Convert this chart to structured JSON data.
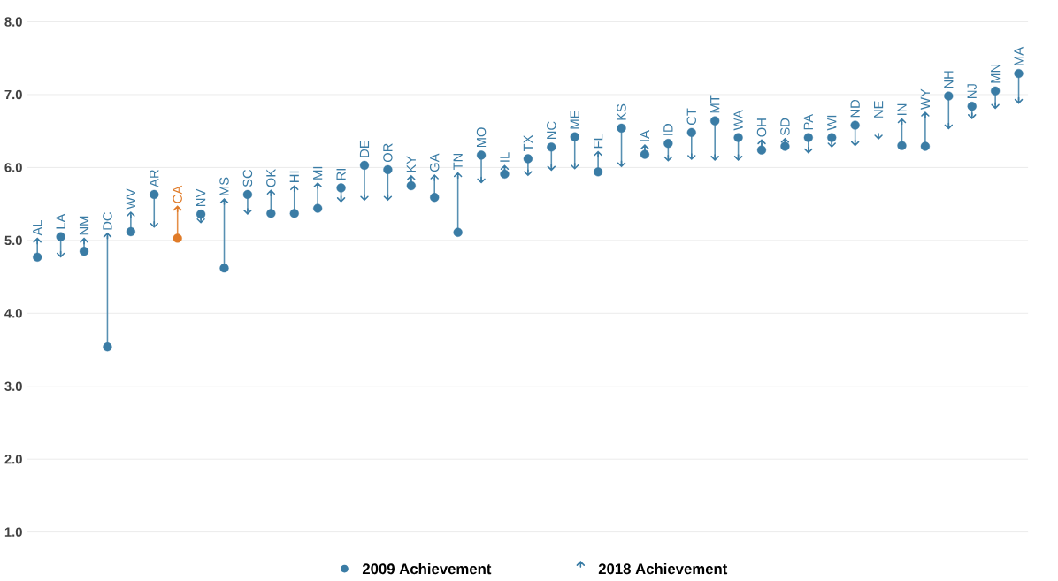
{
  "chart_data": {
    "type": "scatter",
    "categories": [
      "AL",
      "LA",
      "NM",
      "DC",
      "WV",
      "AR",
      "CA",
      "NV",
      "MS",
      "SC",
      "OK",
      "HI",
      "MI",
      "RI",
      "DE",
      "OR",
      "KY",
      "GA",
      "TN",
      "MO",
      "IL",
      "TX",
      "NC",
      "ME",
      "FL",
      "KS",
      "IA",
      "ID",
      "CT",
      "MT",
      "WA",
      "OH",
      "SD",
      "PA",
      "WI",
      "ND",
      "NE",
      "IN",
      "WY",
      "NH",
      "NJ",
      "MN",
      "MA"
    ],
    "series": [
      {
        "name": "2009 Achievement",
        "type": "scatter",
        "marker": "circle",
        "color": "#3a7ca5",
        "colors": [
          "#3a7ca5",
          "#3a7ca5",
          "#3a7ca5",
          "#3a7ca5",
          "#3a7ca5",
          "#3a7ca5",
          "#e07b28",
          "#3a7ca5",
          "#3a7ca5",
          "#3a7ca5",
          "#3a7ca5",
          "#3a7ca5",
          "#3a7ca5",
          "#3a7ca5",
          "#3a7ca5",
          "#3a7ca5",
          "#3a7ca5",
          "#3a7ca5",
          "#3a7ca5",
          "#3a7ca5",
          "#3a7ca5",
          "#3a7ca5",
          "#3a7ca5",
          "#3a7ca5",
          "#3a7ca5",
          "#3a7ca5",
          "#3a7ca5",
          "#3a7ca5",
          "#3a7ca5",
          "#3a7ca5",
          "#3a7ca5",
          "#3a7ca5",
          "#3a7ca5",
          "#3a7ca5",
          "#3a7ca5",
          "#3a7ca5",
          "#3a7ca5",
          "#3a7ca5",
          "#3a7ca5",
          "#3a7ca5",
          "#3a7ca5",
          "#3a7ca5",
          "#3a7ca5"
        ],
        "values": [
          4.77,
          5.05,
          4.85,
          3.54,
          5.12,
          5.63,
          5.03,
          5.36,
          4.62,
          5.63,
          5.37,
          5.37,
          5.44,
          5.72,
          6.03,
          5.97,
          5.75,
          5.59,
          5.11,
          6.17,
          5.91,
          6.12,
          6.28,
          6.42,
          5.94,
          6.54,
          6.18,
          6.33,
          6.48,
          6.64,
          6.41,
          6.24,
          6.29,
          6.41,
          6.41,
          6.58,
          null,
          6.3,
          6.29,
          6.98,
          6.84,
          7.05,
          7.29
        ]
      },
      {
        "name": "2018 Achievement",
        "type": "scatter",
        "color": "#3a7ca5",
        "colors": [
          "#3a7ca5",
          "#3a7ca5",
          "#3a7ca5",
          "#3a7ca5",
          "#3a7ca5",
          "#3a7ca5",
          "#e07b28",
          "#3a7ca5",
          "#3a7ca5",
          "#3a7ca5",
          "#3a7ca5",
          "#3a7ca5",
          "#3a7ca5",
          "#3a7ca5",
          "#3a7ca5",
          "#3a7ca5",
          "#3a7ca5",
          "#3a7ca5",
          "#3a7ca5",
          "#3a7ca5",
          "#3a7ca5",
          "#3a7ca5",
          "#3a7ca5",
          "#3a7ca5",
          "#3a7ca5",
          "#3a7ca5",
          "#3a7ca5",
          "#3a7ca5",
          "#3a7ca5",
          "#3a7ca5",
          "#3a7ca5",
          "#3a7ca5",
          "#3a7ca5",
          "#3a7ca5",
          "#3a7ca5",
          "#3a7ca5",
          "#3a7ca5",
          "#3a7ca5",
          "#3a7ca5",
          "#3a7ca5",
          "#3a7ca5",
          "#3a7ca5",
          "#3a7ca5"
        ],
        "values": [
          4.99,
          4.81,
          4.99,
          5.06,
          5.35,
          5.22,
          5.43,
          5.28,
          5.53,
          5.4,
          5.65,
          5.71,
          5.75,
          5.57,
          5.59,
          5.59,
          5.85,
          5.86,
          5.89,
          5.83,
          5.99,
          5.93,
          6.0,
          6.02,
          6.18,
          6.05,
          6.27,
          6.13,
          6.15,
          6.14,
          6.14,
          6.34,
          6.36,
          6.24,
          6.32,
          6.34,
          6.43,
          6.63,
          6.72,
          6.57,
          6.71,
          6.85,
          6.92
        ]
      }
    ],
    "ylim": [
      1,
      8
    ],
    "yticks": [
      {
        "value": 1,
        "label": "1.0"
      },
      {
        "value": 2,
        "label": "2.0"
      },
      {
        "value": 3,
        "label": "3.0"
      },
      {
        "value": 4,
        "label": "4.0"
      },
      {
        "value": 5,
        "label": "5.0"
      },
      {
        "value": 6,
        "label": "6.0"
      },
      {
        "value": 7,
        "label": "7.0"
      },
      {
        "value": 8,
        "label": "8.0"
      }
    ],
    "grid": "y",
    "legend": "bottom"
  }
}
